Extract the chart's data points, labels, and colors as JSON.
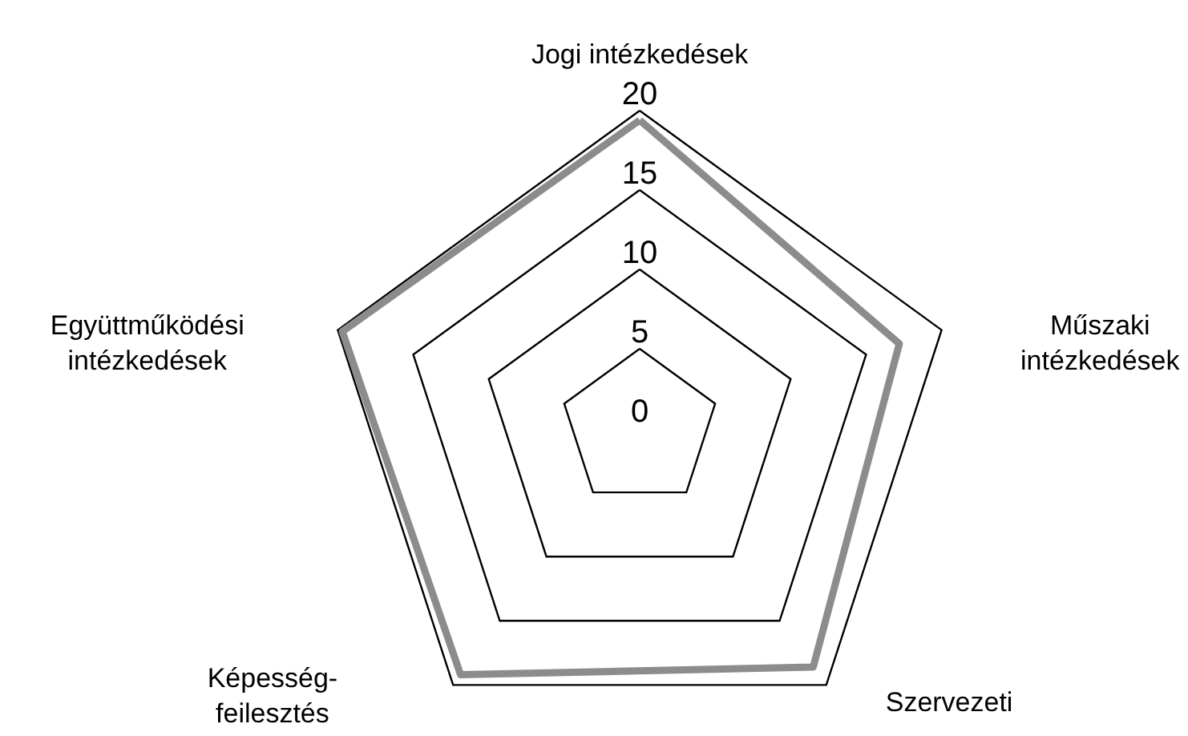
{
  "chart_data": {
    "type": "radar",
    "categories": [
      "Jogi intézkedések",
      "Műszaki\nintézkedések",
      "Szervezeti",
      "Képesség-\nfeilesztés",
      "Együttműködési\nintézkedések"
    ],
    "series": [
      {
        "color": "#8c8c8c",
        "values": [
          19.4,
          17.2,
          18.6,
          19.2,
          19.7
        ]
      }
    ],
    "ylim": [
      0,
      20
    ],
    "yticks": [
      0,
      5,
      10,
      15,
      20
    ],
    "grid": true
  }
}
